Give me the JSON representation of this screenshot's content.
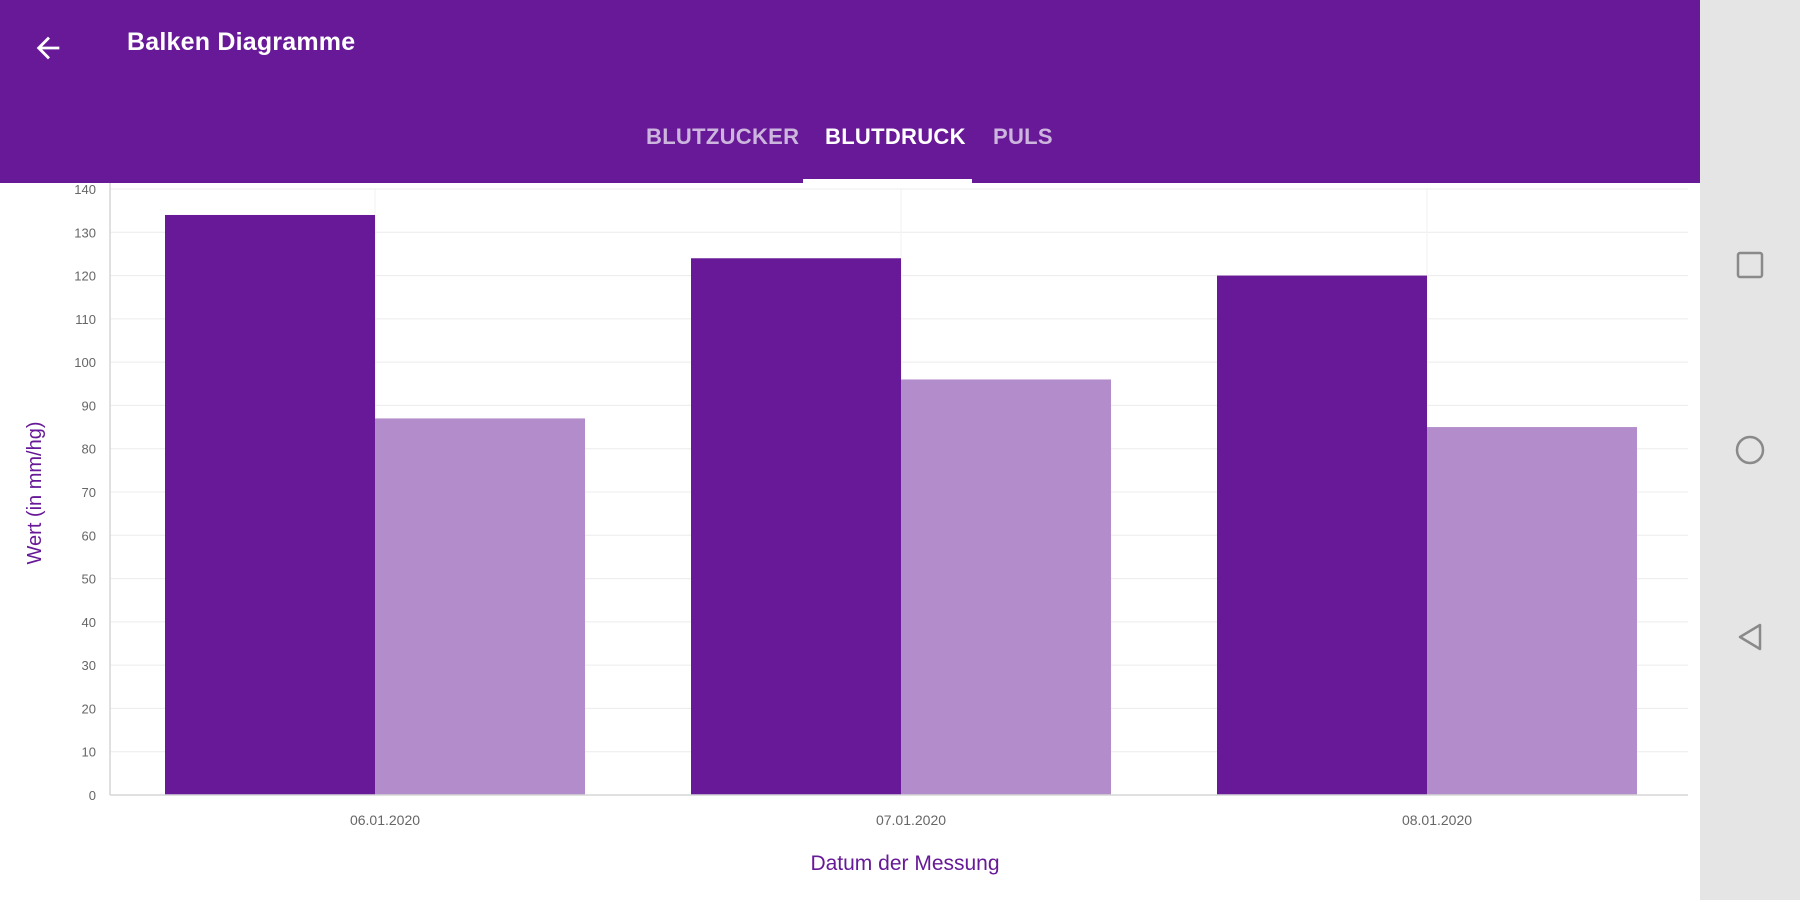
{
  "appbar": {
    "title": "Balken Diagramme",
    "back_icon": "arrow-left-icon",
    "background": "#671997"
  },
  "tabs": [
    {
      "label": "BLUTZUCKER",
      "active": false
    },
    {
      "label": "BLUTDRUCK",
      "active": true
    },
    {
      "label": "PULS",
      "active": false
    }
  ],
  "chart_data": {
    "type": "bar",
    "title": "",
    "xlabel": "Datum der Messung",
    "ylabel": "Wert (in mm/hg)",
    "categories": [
      "06.01.2020",
      "07.01.2020",
      "08.01.2020"
    ],
    "series": [
      {
        "values": [
          134,
          124,
          120
        ],
        "color": "#671997"
      },
      {
        "values": [
          87,
          96,
          85
        ],
        "color": "#b38ccb"
      }
    ],
    "ylim": [
      0,
      140
    ],
    "yticks": [
      0,
      10,
      20,
      30,
      40,
      50,
      60,
      70,
      80,
      90,
      100,
      110,
      120,
      130,
      140
    ],
    "grid": true,
    "legend": "none",
    "label_color": "#671997"
  },
  "navbar": {
    "icons": [
      "square-icon",
      "circle-icon",
      "triangle-back-icon"
    ]
  }
}
